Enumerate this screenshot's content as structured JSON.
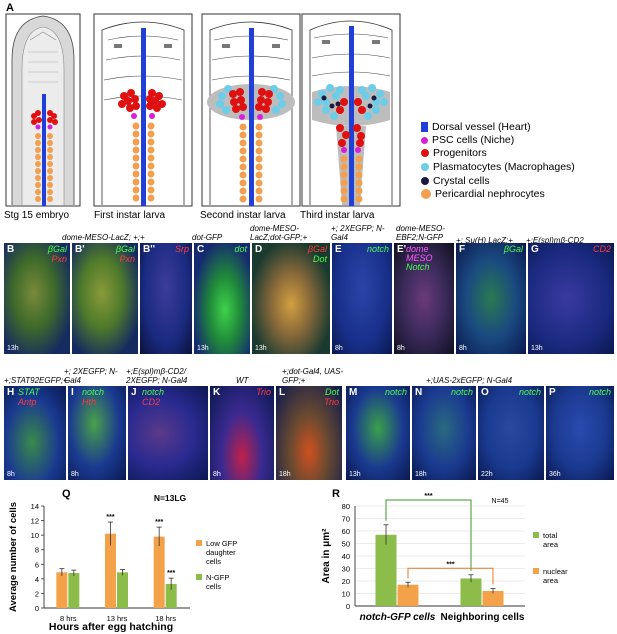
{
  "schematic": {
    "panel_label": "A",
    "stages": [
      "Stg 15 embryo",
      "First instar larva",
      "Second instar larva",
      "Third instar larva"
    ]
  },
  "legend": [
    {
      "label": "Dorsal vessel (Heart)",
      "color": "#1f3fd8",
      "shape": "bar"
    },
    {
      "label": "PSC cells (Niche)",
      "color": "#d81fd8",
      "shape": "dot"
    },
    {
      "label": "Progenitors",
      "color": "#e01010",
      "shape": "dot"
    },
    {
      "label": "Plasmatocytes (Macrophages)",
      "color": "#6ccde8",
      "shape": "dot"
    },
    {
      "label": "Crystal cells",
      "color": "#1a1a40",
      "shape": "dot"
    },
    {
      "label": "Pericardial nephrocytes",
      "color": "#f2a050",
      "shape": "dot"
    }
  ],
  "row1": {
    "genotype_B": "dome-MESO-LacZ; +;+",
    "genotype_C": "dot-GFP",
    "genotype_D": "dome-MESO-LacZ;dot-GFP;+",
    "genotype_E": "+; 2XEGFP; N-Gal4",
    "genotype_E2": "dome-MESO-EBF2;N-GFP",
    "genotype_F": "+; Su(H) LacZ;+",
    "genotype_G": "+;E(spl)mβ-CD2",
    "panels": [
      {
        "id": "B",
        "channels": [
          "βGal",
          "Pxn"
        ],
        "time": "13h"
      },
      {
        "id": "B'",
        "channels": [
          "βGal",
          "Pxn"
        ],
        "time": ""
      },
      {
        "id": "B''",
        "channels": [
          "Srp"
        ],
        "time": ""
      },
      {
        "id": "C",
        "channels": [
          "dot"
        ],
        "time": "13h"
      },
      {
        "id": "D",
        "channels": [
          "βGal",
          "Dot"
        ],
        "time": "13h"
      },
      {
        "id": "E",
        "channels": [
          "notch"
        ],
        "time": "8h"
      },
      {
        "id": "E'",
        "channels": [
          "dome",
          "MESO",
          "Notch"
        ],
        "time": "8h"
      },
      {
        "id": "F",
        "channels": [
          "βGal"
        ],
        "time": "8h"
      },
      {
        "id": "G",
        "channels": [
          "CD2"
        ],
        "time": "13h"
      }
    ]
  },
  "row2": {
    "genotype_H": "+;STAT92EGFP;+",
    "genotype_I": "+; 2XEGFP; N-Gal4",
    "genotype_J": "+;E(spl)mβ-CD2/ 2XEGFP; N-Gal4",
    "genotype_K": "WT",
    "genotype_L": "+;dot-Gal4, UAS-GFP;+",
    "genotype_MP": "+;UAS-2xEGFP; N-Gal4",
    "panels": [
      {
        "id": "H",
        "channels": [
          "STAT",
          "Antp"
        ],
        "time": "8h"
      },
      {
        "id": "I",
        "channels": [
          "notch",
          "Hth"
        ],
        "time": "8h"
      },
      {
        "id": "J",
        "channels": [
          "notch",
          "CD2"
        ],
        "time": ""
      },
      {
        "id": "K",
        "channels": [
          "Trio"
        ],
        "time": "8h"
      },
      {
        "id": "L",
        "channels": [
          "Dot",
          "Trio"
        ],
        "time": "18h"
      },
      {
        "id": "M",
        "channels": [
          "notch"
        ],
        "time": "13h"
      },
      {
        "id": "N",
        "channels": [
          "notch"
        ],
        "time": "18h"
      },
      {
        "id": "O",
        "channels": [
          "notch"
        ],
        "time": "22h"
      },
      {
        "id": "P",
        "channels": [
          "notch"
        ],
        "time": "36h"
      }
    ]
  },
  "chart_data": [
    {
      "panel": "Q",
      "type": "bar",
      "ylabel": "Average number of cells",
      "xlabel": "Hours after egg hatching",
      "note": "N=13LG",
      "categories": [
        "8 hrs",
        "13 hrs",
        "18 hrs"
      ],
      "ylim": [
        0,
        14
      ],
      "yticks": [
        0,
        2,
        4,
        6,
        8,
        10,
        12,
        14
      ],
      "series": [
        {
          "name": "Low GFP daughter cells",
          "color": "#f4a24a",
          "values": [
            4.9,
            10.2,
            9.8
          ],
          "errors": [
            0.5,
            1.6,
            1.3
          ]
        },
        {
          "name": "N-GFP cells",
          "color": "#8cbd4a",
          "values": [
            4.8,
            4.9,
            3.3
          ],
          "errors": [
            0.4,
            0.4,
            0.8
          ]
        }
      ],
      "significance": [
        "",
        "***",
        "***"
      ],
      "significance_b": [
        "",
        "",
        "***"
      ]
    },
    {
      "panel": "R",
      "type": "bar",
      "ylabel": "Area  in μm²",
      "note": "N=45",
      "categories": [
        "notch-GFP cells",
        "Neighboring cells"
      ],
      "ylim": [
        0,
        80
      ],
      "yticks": [
        0,
        10,
        20,
        30,
        40,
        50,
        60,
        70,
        80
      ],
      "series": [
        {
          "name": "total area",
          "color": "#8cbd4a",
          "values": [
            57,
            22
          ],
          "errors": [
            8,
            3
          ]
        },
        {
          "name": "nuclear area",
          "color": "#f4a24a",
          "values": [
            17,
            12
          ],
          "errors": [
            2,
            2
          ]
        }
      ],
      "significance": [
        "***",
        "***"
      ]
    }
  ]
}
